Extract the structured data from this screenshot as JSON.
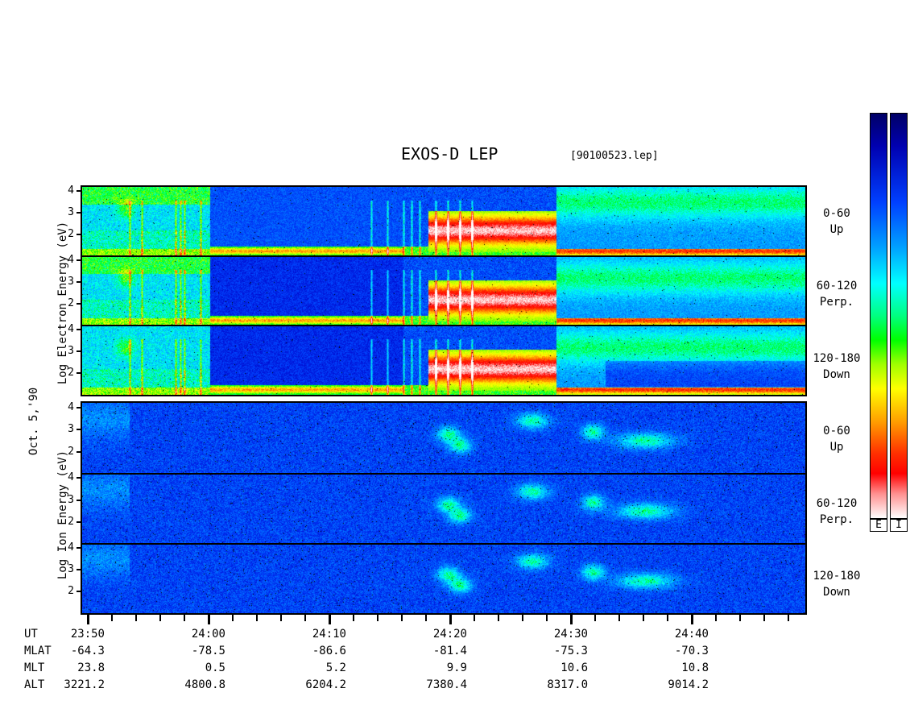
{
  "header": {
    "title": "EXOS-D LEP",
    "file": "[90100523.lep]"
  },
  "left_labels": {
    "electron": "Log Electron Energy (eV)",
    "date": "Oct. 5,'90",
    "ion": "Log Ion Energy (eV)"
  },
  "panel_labels": [
    {
      "range": "0-60",
      "dir": "Up"
    },
    {
      "range": "60-120",
      "dir": "Perp."
    },
    {
      "range": "120-180",
      "dir": "Down"
    },
    {
      "range": "0-60",
      "dir": "Up"
    },
    {
      "range": "60-120",
      "dir": "Perp."
    },
    {
      "range": "120-180",
      "dir": "Down"
    }
  ],
  "colorbar": {
    "electron_label": "E",
    "ion_label": "I"
  },
  "chart_data": {
    "type": "heatmap",
    "title": "EXOS-D LEP",
    "subtitle": "[90100523.lep]",
    "ylabel_electron": "Log Electron Energy (eV)",
    "ylabel_ion": "Log Ion Energy (eV)",
    "y_ticks": [
      "1",
      "2",
      "3",
      "4"
    ],
    "ylim": [
      1,
      4.2
    ],
    "x_tick_labels": [
      "23:50",
      "24:00",
      "24:10",
      "24:20",
      "24:30",
      "24:40"
    ],
    "ephemeris": {
      "rows": [
        {
          "name": "UT",
          "values": [
            "23:50",
            "24:00",
            "24:10",
            "24:20",
            "24:30",
            "24:40"
          ]
        },
        {
          "name": "MLAT",
          "values": [
            "-64.3",
            "-78.5",
            "-86.6",
            "-81.4",
            "-75.3",
            "-70.3"
          ]
        },
        {
          "name": "MLT",
          "values": [
            "23.8",
            "0.5",
            "5.2",
            "9.9",
            "10.6",
            "10.8"
          ]
        },
        {
          "name": "ALT",
          "values": [
            "3221.2",
            "4800.8",
            "6204.2",
            "7380.4",
            "8317.0",
            "9014.2"
          ]
        }
      ]
    },
    "panels": [
      {
        "species": "electron",
        "pitch_angle": "0-60",
        "direction": "Up"
      },
      {
        "species": "electron",
        "pitch_angle": "60-120",
        "direction": "Perp."
      },
      {
        "species": "electron",
        "pitch_angle": "120-180",
        "direction": "Down"
      },
      {
        "species": "ion",
        "pitch_angle": "0-60",
        "direction": "Up"
      },
      {
        "species": "ion",
        "pitch_angle": "60-120",
        "direction": "Perp."
      },
      {
        "species": "ion",
        "pitch_angle": "120-180",
        "direction": "Down"
      }
    ],
    "colorscale": [
      "#ffffff",
      "#ff0000",
      "#ff8000",
      "#ffff00",
      "#00ff00",
      "#00ffff",
      "#0080ff",
      "#0000c0",
      "#000060"
    ]
  }
}
